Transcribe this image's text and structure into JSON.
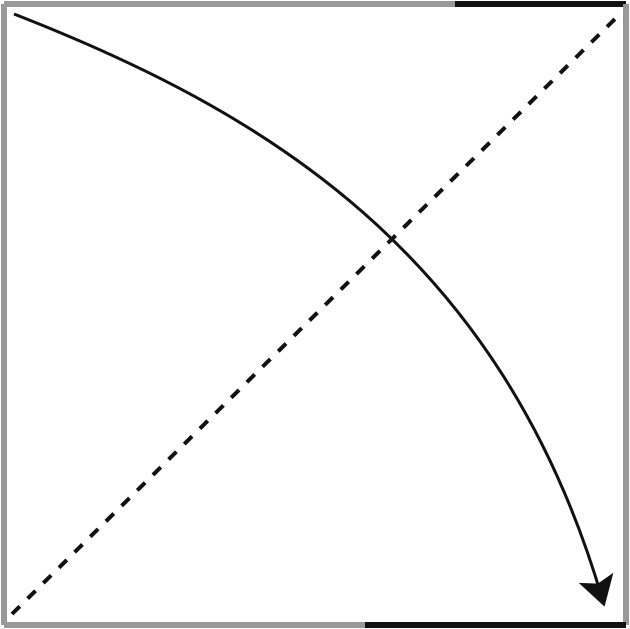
{
  "diagram": {
    "colors": {
      "frame_light": "#999999",
      "frame_dark": "#111111",
      "curve": "#111111",
      "dashed_line": "#111111",
      "background": "#ffffff"
    },
    "elements": {
      "frame": "square-border",
      "curve": "curved-arrow-top-left-to-bottom-right",
      "dashed": "dashed-diagonal-bottom-left-to-top-right"
    }
  }
}
